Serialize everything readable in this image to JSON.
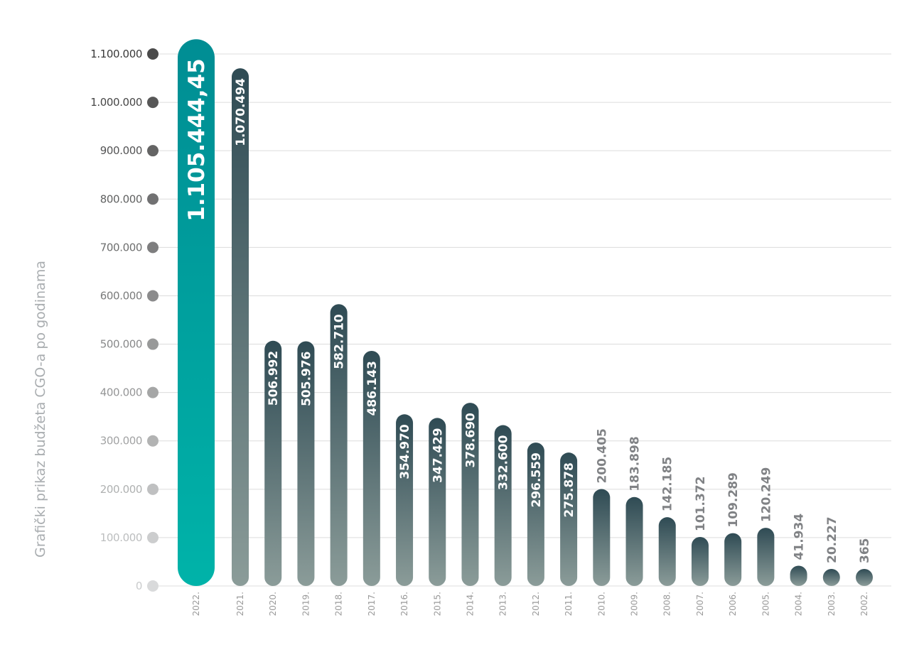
{
  "chart_data": {
    "type": "bar",
    "ylabel": "Grafički prikaz budžeta CGO-a po godinama",
    "ylim": [
      0,
      1100000
    ],
    "y_ticks": [
      {
        "value": 0,
        "label": "0"
      },
      {
        "value": 100000,
        "label": "100.000"
      },
      {
        "value": 200000,
        "label": "200.000"
      },
      {
        "value": 300000,
        "label": "300.000"
      },
      {
        "value": 400000,
        "label": "400.000"
      },
      {
        "value": 500000,
        "label": "500.000"
      },
      {
        "value": 600000,
        "label": "600.000"
      },
      {
        "value": 700000,
        "label": "700.000"
      },
      {
        "value": 800000,
        "label": "800.000"
      },
      {
        "value": 900000,
        "label": "900.000"
      },
      {
        "value": 1000000,
        "label": "1.000.000"
      },
      {
        "value": 1100000,
        "label": "1.100.000"
      }
    ],
    "grid": true,
    "categories": [
      "2022.",
      "2021.",
      "2020.",
      "2019.",
      "2018.",
      "2017.",
      "2016.",
      "2015.",
      "2014.",
      "2013.",
      "2012.",
      "2011.",
      "2010.",
      "2009.",
      "2008.",
      "2007.",
      "2006.",
      "2005.",
      "2004.",
      "2003.",
      "2002."
    ],
    "values": [
      1105444.45,
      1070494,
      506992,
      505976,
      582710,
      486143,
      354970,
      347429,
      378690,
      332600,
      296559,
      275878,
      200405,
      183898,
      142185,
      101372,
      109289,
      120249,
      41934,
      20227,
      365
    ],
    "value_labels": [
      "1.105.444,45",
      "1.070.494",
      "506.992",
      "505.976",
      "582.710",
      "486.143",
      "354.970",
      "347.429",
      "378.690",
      "332.600",
      "296.559",
      "275.878",
      "200.405",
      "183.898",
      "142.185",
      "101.372",
      "109.289",
      "120.249",
      "41.934",
      "20.227",
      "365"
    ],
    "colors": {
      "highlight_top": "#008d93",
      "highlight_bottom": "#00b3a9",
      "bar_top": "#2f4b54",
      "bar_bottom": "#8b9c99",
      "grid": "#dcdcdc",
      "outside_label": "#808285"
    }
  }
}
